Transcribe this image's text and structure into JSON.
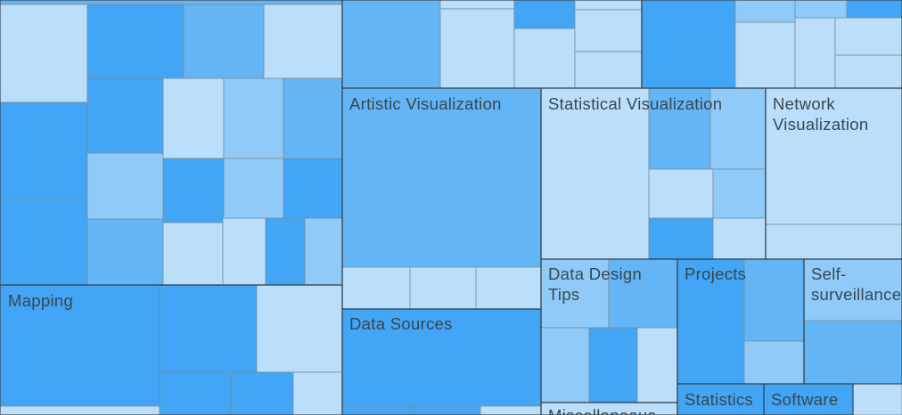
{
  "treemap": {
    "labels": [
      {
        "lines": [
          "Artistic Visualization"
        ]
      },
      {
        "lines": [
          "Statistical Visualization"
        ]
      },
      {
        "lines": [
          "Network",
          "Visualization"
        ]
      },
      {
        "lines": [
          "Mapping"
        ]
      },
      {
        "lines": [
          "Data Sources"
        ]
      },
      {
        "lines": [
          "Data Design",
          "Tips"
        ]
      },
      {
        "lines": [
          "Projects"
        ]
      },
      {
        "lines": [
          "Self-",
          "surveillance"
        ]
      },
      {
        "lines": [
          "Statistics"
        ]
      },
      {
        "lines": [
          "Software"
        ]
      },
      {
        "lines": [
          "Miscellaneous"
        ]
      }
    ]
  }
}
